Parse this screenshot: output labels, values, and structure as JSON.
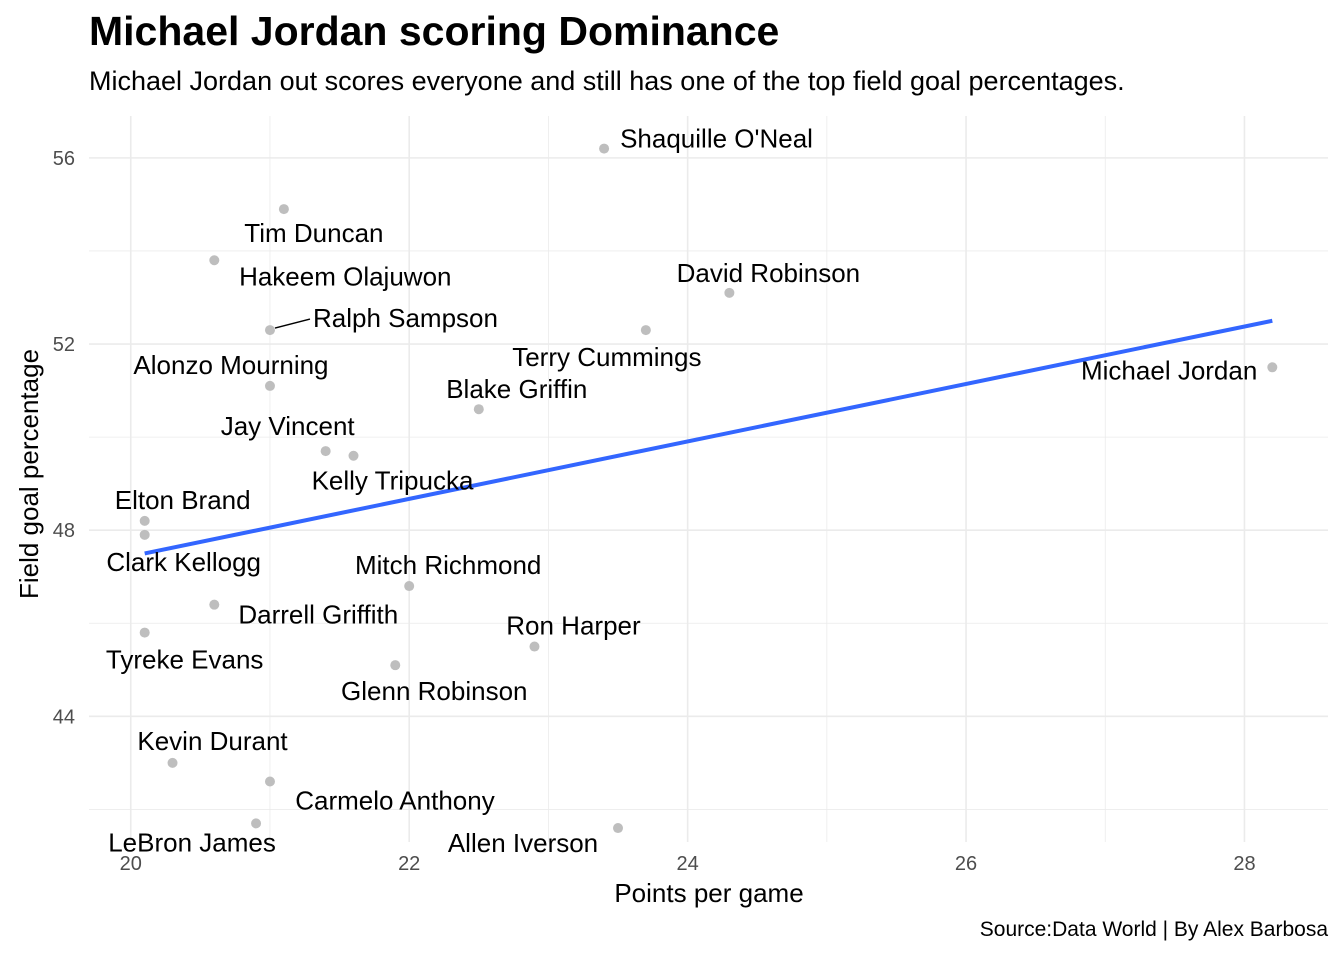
{
  "title": "Michael Jordan scoring Dominance",
  "subtitle": "Michael Jordan out scores everyone and still has one of the top field goal percentages.",
  "caption": "Source:Data World | By Alex Barbosa",
  "colors": {
    "points": "#bebebe",
    "trend_line": "#3366ff",
    "grid": "#ebebeb"
  },
  "chart_data": {
    "type": "scatter",
    "xlabel": "Points per game",
    "ylabel": "Field goal percentage",
    "xlim": [
      19.7,
      28.6
    ],
    "ylim": [
      41.3,
      56.9
    ],
    "x_ticks": [
      20,
      22,
      24,
      26,
      28
    ],
    "y_ticks": [
      44,
      48,
      52,
      56
    ],
    "grid": true,
    "points": [
      {
        "name": "Shaquille O'Neal",
        "x": 23.4,
        "y": 56.2
      },
      {
        "name": "Tim Duncan",
        "x": 21.1,
        "y": 54.9
      },
      {
        "name": "Hakeem Olajuwon",
        "x": 20.6,
        "y": 53.8
      },
      {
        "name": "David Robinson",
        "x": 24.3,
        "y": 53.1
      },
      {
        "name": "Ralph Sampson",
        "x": 21.0,
        "y": 52.3
      },
      {
        "name": "Terry Cummings",
        "x": 23.7,
        "y": 52.3
      },
      {
        "name": "Michael Jordan",
        "x": 28.2,
        "y": 51.5
      },
      {
        "name": "Alonzo Mourning",
        "x": 21.0,
        "y": 51.1
      },
      {
        "name": "Blake Griffin",
        "x": 22.5,
        "y": 50.6
      },
      {
        "name": "Jay Vincent",
        "x": 21.4,
        "y": 49.7
      },
      {
        "name": "Kelly Tripucka",
        "x": 21.6,
        "y": 49.6
      },
      {
        "name": "Elton Brand",
        "x": 20.1,
        "y": 48.2
      },
      {
        "name": "Clark Kellogg",
        "x": 20.1,
        "y": 47.9
      },
      {
        "name": "Mitch Richmond",
        "x": 22.0,
        "y": 46.8
      },
      {
        "name": "Darrell Griffith",
        "x": 20.6,
        "y": 46.4
      },
      {
        "name": "Tyreke Evans",
        "x": 20.1,
        "y": 45.8
      },
      {
        "name": "Ron Harper",
        "x": 22.9,
        "y": 45.5
      },
      {
        "name": "Glenn Robinson",
        "x": 21.9,
        "y": 45.1
      },
      {
        "name": "Kevin Durant",
        "x": 20.3,
        "y": 43.0
      },
      {
        "name": "Carmelo Anthony",
        "x": 21.0,
        "y": 42.6
      },
      {
        "name": "LeBron James",
        "x": 20.9,
        "y": 41.7
      },
      {
        "name": "Allen Iverson",
        "x": 23.5,
        "y": 41.6
      }
    ],
    "trend_line": {
      "type": "linear",
      "x": [
        20.1,
        28.2
      ],
      "y": [
        47.5,
        52.5
      ]
    }
  }
}
